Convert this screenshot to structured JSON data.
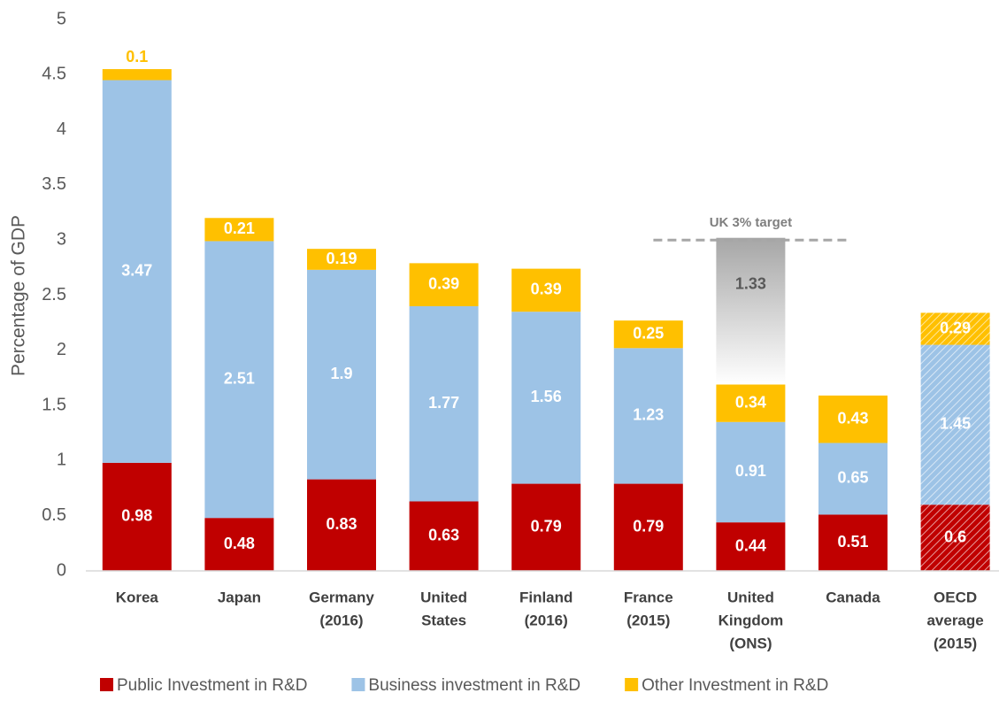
{
  "chart_data": {
    "type": "stacked_bar",
    "y_label": "Percentage of GDP",
    "categories": [
      [
        "Korea"
      ],
      [
        "Japan"
      ],
      [
        "Germany",
        "(2016)"
      ],
      [
        "United",
        "States"
      ],
      [
        "Finland",
        "(2016)"
      ],
      [
        "France",
        "(2015)"
      ],
      [
        "United",
        "Kingdom",
        "(ONS)"
      ],
      [
        "Canada"
      ],
      [
        "OECD",
        "average",
        "(2015)"
      ]
    ],
    "series": [
      {
        "name": "Public Investment in R&D",
        "color": "#c00000",
        "values": [
          0.98,
          0.48,
          0.83,
          0.63,
          0.79,
          0.79,
          0.44,
          0.51,
          0.6
        ]
      },
      {
        "name": "Business investment in R&D",
        "color": "#9dc3e6",
        "values": [
          3.47,
          2.51,
          1.9,
          1.77,
          1.56,
          1.23,
          0.91,
          0.65,
          1.45
        ]
      },
      {
        "name": "Other Investment in R&D",
        "color": "#ffc000",
        "values": [
          0.1,
          0.21,
          0.19,
          0.39,
          0.39,
          0.25,
          0.34,
          0.43,
          0.29
        ]
      }
    ],
    "target_gap": {
      "color": "#a6a6a6",
      "values": [
        null,
        null,
        null,
        null,
        null,
        null,
        1.33,
        null,
        null
      ]
    },
    "target": {
      "label": "UK 3% target",
      "value": 3
    },
    "hatched": [
      false,
      false,
      false,
      false,
      false,
      false,
      false,
      false,
      true
    ],
    "ylim": [
      0,
      5
    ],
    "yticks": [
      0,
      0.5,
      1,
      1.5,
      2,
      2.5,
      3,
      3.5,
      4,
      4.5,
      5
    ],
    "grid": false,
    "legend": "bottom"
  }
}
